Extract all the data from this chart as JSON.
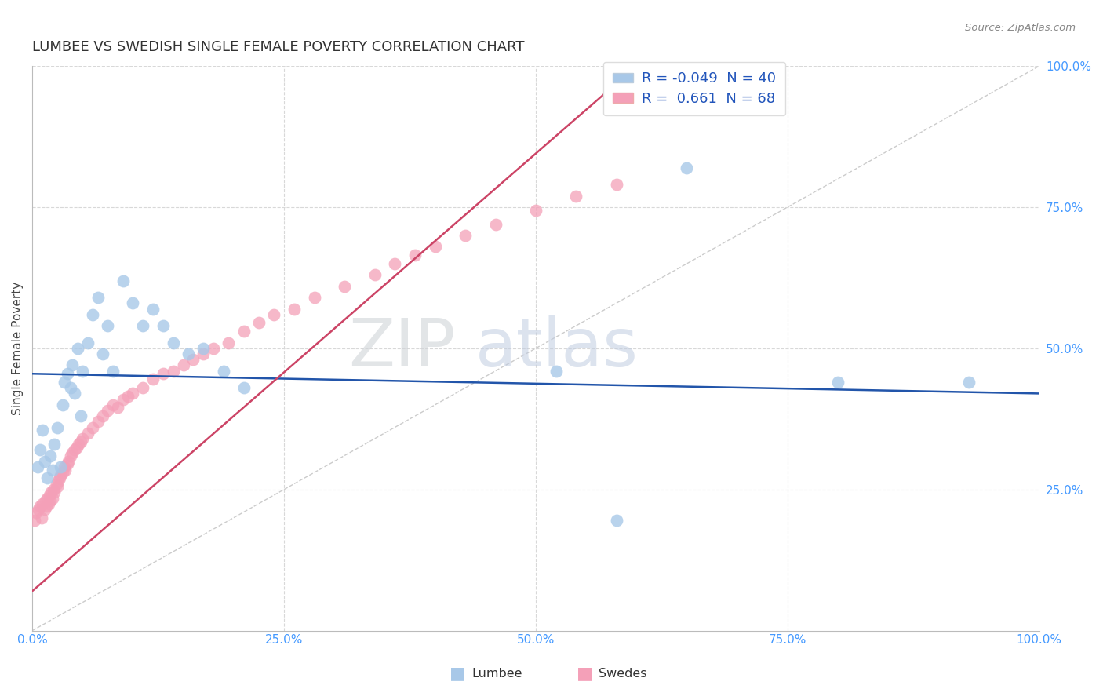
{
  "title": "LUMBEE VS SWEDISH SINGLE FEMALE POVERTY CORRELATION CHART",
  "source": "Source: ZipAtlas.com",
  "ylabel": "Single Female Poverty",
  "xlim": [
    0.0,
    1.0
  ],
  "ylim": [
    0.0,
    1.0
  ],
  "xtick_labels": [
    "0.0%",
    "25.0%",
    "50.0%",
    "75.0%",
    "100.0%"
  ],
  "xtick_positions": [
    0.0,
    0.25,
    0.5,
    0.75,
    1.0
  ],
  "ytick_labels": [
    "25.0%",
    "50.0%",
    "75.0%",
    "100.0%"
  ],
  "ytick_positions": [
    0.25,
    0.5,
    0.75,
    1.0
  ],
  "lumbee_R": -0.049,
  "lumbee_N": 40,
  "swedes_R": 0.661,
  "swedes_N": 68,
  "lumbee_color": "#a8c8e8",
  "swedes_color": "#f4a0b8",
  "lumbee_line_color": "#2255aa",
  "swedes_line_color": "#cc4466",
  "diagonal_color": "#cccccc",
  "watermark_zip": "ZIP",
  "watermark_atlas": "atlas",
  "lumbee_slope": -0.035,
  "lumbee_intercept": 0.455,
  "swedes_slope": 1.55,
  "swedes_intercept": 0.07,
  "lumbee_x": [
    0.005,
    0.008,
    0.01,
    0.012,
    0.015,
    0.018,
    0.02,
    0.022,
    0.025,
    0.028,
    0.03,
    0.032,
    0.035,
    0.038,
    0.04,
    0.042,
    0.045,
    0.048,
    0.05,
    0.055,
    0.06,
    0.065,
    0.07,
    0.075,
    0.08,
    0.09,
    0.1,
    0.11,
    0.12,
    0.13,
    0.14,
    0.155,
    0.17,
    0.19,
    0.21,
    0.52,
    0.58,
    0.65,
    0.8,
    0.93
  ],
  "lumbee_y": [
    0.29,
    0.32,
    0.355,
    0.3,
    0.27,
    0.31,
    0.285,
    0.33,
    0.36,
    0.29,
    0.4,
    0.44,
    0.455,
    0.43,
    0.47,
    0.42,
    0.5,
    0.38,
    0.46,
    0.51,
    0.56,
    0.59,
    0.49,
    0.54,
    0.46,
    0.62,
    0.58,
    0.54,
    0.57,
    0.54,
    0.51,
    0.49,
    0.5,
    0.46,
    0.43,
    0.46,
    0.195,
    0.82,
    0.44,
    0.44
  ],
  "swedes_x": [
    0.002,
    0.004,
    0.006,
    0.008,
    0.009,
    0.01,
    0.012,
    0.013,
    0.014,
    0.015,
    0.016,
    0.017,
    0.018,
    0.019,
    0.02,
    0.021,
    0.022,
    0.024,
    0.025,
    0.026,
    0.027,
    0.028,
    0.03,
    0.032,
    0.033,
    0.035,
    0.036,
    0.038,
    0.04,
    0.042,
    0.044,
    0.046,
    0.048,
    0.05,
    0.055,
    0.06,
    0.065,
    0.07,
    0.075,
    0.08,
    0.085,
    0.09,
    0.095,
    0.1,
    0.11,
    0.12,
    0.13,
    0.14,
    0.15,
    0.16,
    0.17,
    0.18,
    0.195,
    0.21,
    0.225,
    0.24,
    0.26,
    0.28,
    0.31,
    0.34,
    0.36,
    0.38,
    0.4,
    0.43,
    0.46,
    0.5,
    0.54,
    0.58
  ],
  "swedes_y": [
    0.195,
    0.21,
    0.215,
    0.22,
    0.2,
    0.225,
    0.215,
    0.23,
    0.22,
    0.235,
    0.225,
    0.24,
    0.23,
    0.245,
    0.235,
    0.25,
    0.245,
    0.26,
    0.255,
    0.265,
    0.27,
    0.275,
    0.28,
    0.29,
    0.285,
    0.295,
    0.3,
    0.31,
    0.315,
    0.32,
    0.325,
    0.33,
    0.335,
    0.34,
    0.35,
    0.36,
    0.37,
    0.38,
    0.39,
    0.4,
    0.395,
    0.41,
    0.415,
    0.42,
    0.43,
    0.445,
    0.455,
    0.46,
    0.47,
    0.48,
    0.49,
    0.5,
    0.51,
    0.53,
    0.545,
    0.56,
    0.57,
    0.59,
    0.61,
    0.63,
    0.65,
    0.665,
    0.68,
    0.7,
    0.72,
    0.745,
    0.77,
    0.79
  ]
}
